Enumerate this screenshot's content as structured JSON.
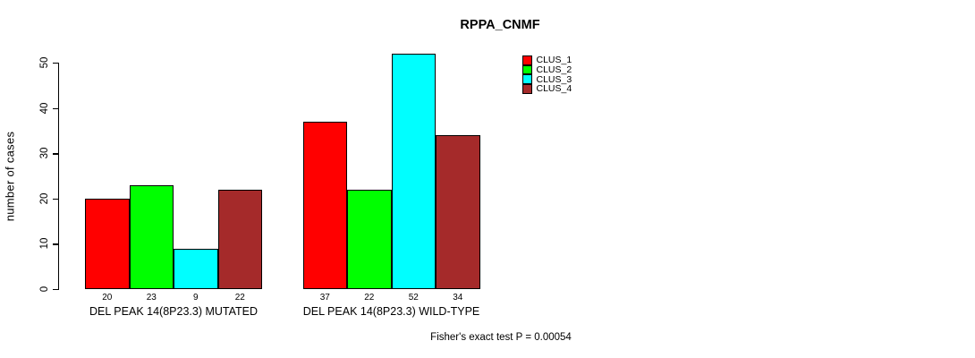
{
  "chart_data": {
    "type": "bar",
    "title": "RPPA_CNMF",
    "ylabel": "number of cases",
    "xlabel": "",
    "categories": [
      "DEL PEAK 14(8P23.3) MUTATED",
      "DEL PEAK 14(8P23.3) WILD-TYPE"
    ],
    "series": [
      {
        "name": "CLUS_1",
        "color": "#FF0000",
        "values": [
          20,
          37
        ]
      },
      {
        "name": "CLUS_2",
        "color": "#00FF00",
        "values": [
          23,
          22
        ]
      },
      {
        "name": "CLUS_3",
        "color": "#00FFFF",
        "values": [
          9,
          52
        ]
      },
      {
        "name": "CLUS_4",
        "color": "#A52A2A",
        "values": [
          22,
          34
        ]
      }
    ],
    "bar_value_labels": [
      [
        "20",
        "23",
        "9",
        "22"
      ],
      [
        "37",
        "22",
        "52",
        "34"
      ]
    ],
    "yticks": [
      "0",
      "10",
      "20",
      "30",
      "40",
      "50"
    ],
    "ylim": [
      0,
      52
    ],
    "grid": false,
    "legend_position": "top-right",
    "annotation": "Fisher's exact test P = 0.00054"
  }
}
